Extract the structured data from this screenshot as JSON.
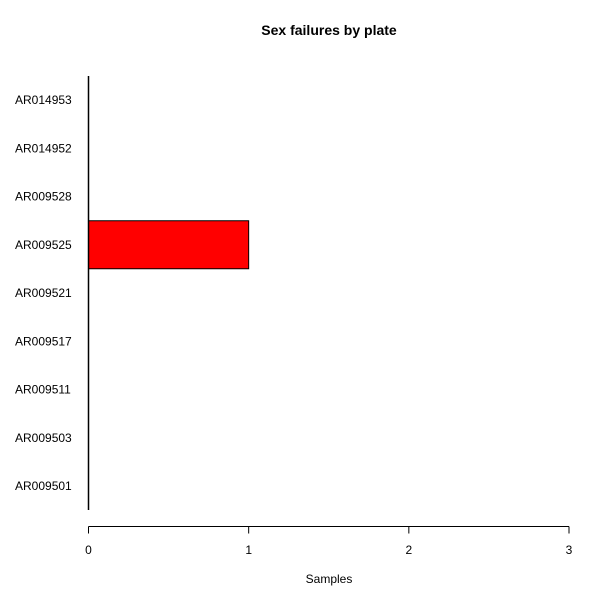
{
  "chart_data": {
    "type": "bar",
    "orientation": "horizontal",
    "title": "Sex failures by plate",
    "xlabel": "Samples",
    "ylabel": "",
    "xlim": [
      0,
      3
    ],
    "x_ticks": [
      0,
      1,
      2,
      3
    ],
    "categories": [
      "AR009501",
      "AR009503",
      "AR009511",
      "AR009517",
      "AR009521",
      "AR009525",
      "AR009528",
      "AR014952",
      "AR014953"
    ],
    "values": [
      0,
      0,
      0,
      0,
      0,
      1,
      0,
      0,
      0
    ],
    "bar_color": "#ff0000",
    "grid": false,
    "legend": "none"
  }
}
